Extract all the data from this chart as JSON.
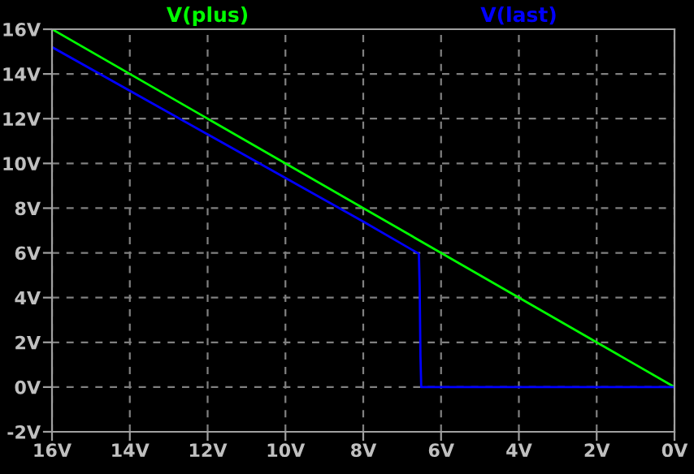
{
  "chart_data": {
    "type": "line",
    "series": [
      {
        "name": "V(plus)",
        "color": "#00ff00",
        "x": [
          16,
          0
        ],
        "values": [
          16,
          0
        ]
      },
      {
        "name": "V(last)",
        "color": "#0000ff",
        "x": [
          16,
          12,
          8,
          6.57,
          6.55,
          6.53,
          6.51,
          0
        ],
        "values": [
          15.2,
          11.3,
          7.4,
          5.96,
          4.5,
          1.4,
          0,
          0
        ]
      }
    ],
    "xlim": [
      16,
      0
    ],
    "ylim": [
      -2,
      16
    ],
    "xticks": [
      {
        "value": 16,
        "label": "16V"
      },
      {
        "value": 14,
        "label": "14V"
      },
      {
        "value": 12,
        "label": "12V"
      },
      {
        "value": 10,
        "label": "10V"
      },
      {
        "value": 8,
        "label": "8V"
      },
      {
        "value": 6,
        "label": "6V"
      },
      {
        "value": 4,
        "label": "4V"
      },
      {
        "value": 2,
        "label": "2V"
      },
      {
        "value": 0,
        "label": "0V"
      }
    ],
    "yticks": [
      {
        "value": -2,
        "label": "-2V"
      },
      {
        "value": 0,
        "label": "0V"
      },
      {
        "value": 2,
        "label": "2V"
      },
      {
        "value": 4,
        "label": "4V"
      },
      {
        "value": 6,
        "label": "6V"
      },
      {
        "value": 8,
        "label": "8V"
      },
      {
        "value": 10,
        "label": "10V"
      },
      {
        "value": 12,
        "label": "12V"
      },
      {
        "value": 14,
        "label": "14V"
      },
      {
        "value": 16,
        "label": "16V"
      }
    ],
    "grid": true,
    "legend": "top",
    "line_style": "solid"
  }
}
